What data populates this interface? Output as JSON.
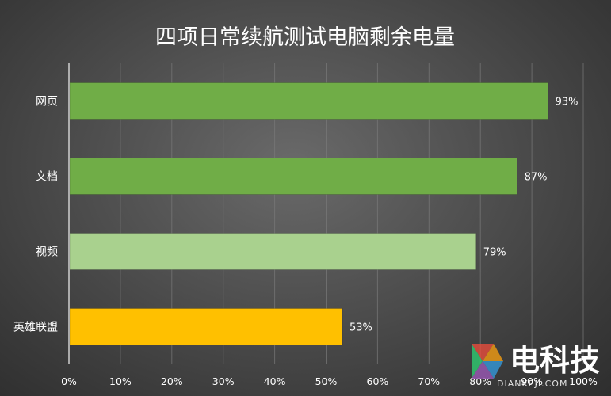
{
  "chart_data": {
    "type": "bar",
    "orientation": "horizontal",
    "title": "四项日常续航测试电脑剩余电量",
    "xlabel": "",
    "ylabel": "",
    "categories": [
      "网页",
      "文档",
      "视频",
      "英雄联盟"
    ],
    "values": [
      93,
      87,
      79,
      53
    ],
    "data_labels": [
      "93%",
      "87%",
      "79%",
      "53%"
    ],
    "bar_colors": [
      "#70ad47",
      "#70ad47",
      "#a9d18e",
      "#ffc000"
    ],
    "xlim": [
      0,
      100
    ],
    "x_ticks": [
      0,
      10,
      20,
      30,
      40,
      50,
      60,
      70,
      80,
      90,
      100
    ],
    "x_tick_labels": [
      "0%",
      "10%",
      "20%",
      "30%",
      "40%",
      "50%",
      "60%",
      "70%",
      "80%",
      "90%",
      "100%"
    ],
    "grid": true
  },
  "watermark": {
    "text": "电科技",
    "sub": "DIANKEJI.COM",
    "colors": [
      "#e74c3c",
      "#f39c12",
      "#2ecc71",
      "#3498db",
      "#9b59b6"
    ]
  }
}
